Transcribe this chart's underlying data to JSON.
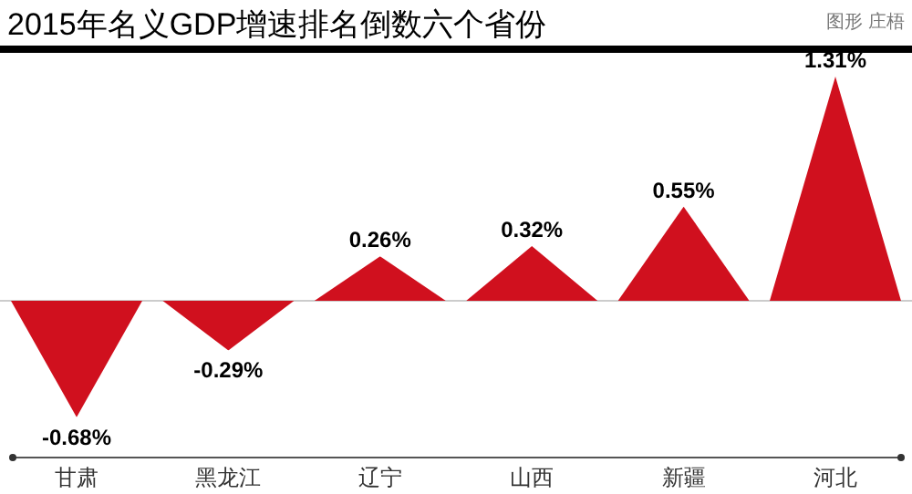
{
  "chart_data": {
    "type": "bar",
    "title": "2015年名义GDP增速排名倒数六个省份",
    "annotations": [
      "图形 庄梧"
    ],
    "categories": [
      "甘肃",
      "黑龙江",
      "辽宁",
      "山西",
      "新疆",
      "河北"
    ],
    "values": [
      -0.68,
      -0.29,
      0.26,
      0.32,
      0.55,
      1.31
    ],
    "value_labels": [
      "-0.68%",
      "-0.29%",
      "0.26%",
      "0.32%",
      "0.55%",
      "1.31%"
    ],
    "color": "#d0101e"
  }
}
